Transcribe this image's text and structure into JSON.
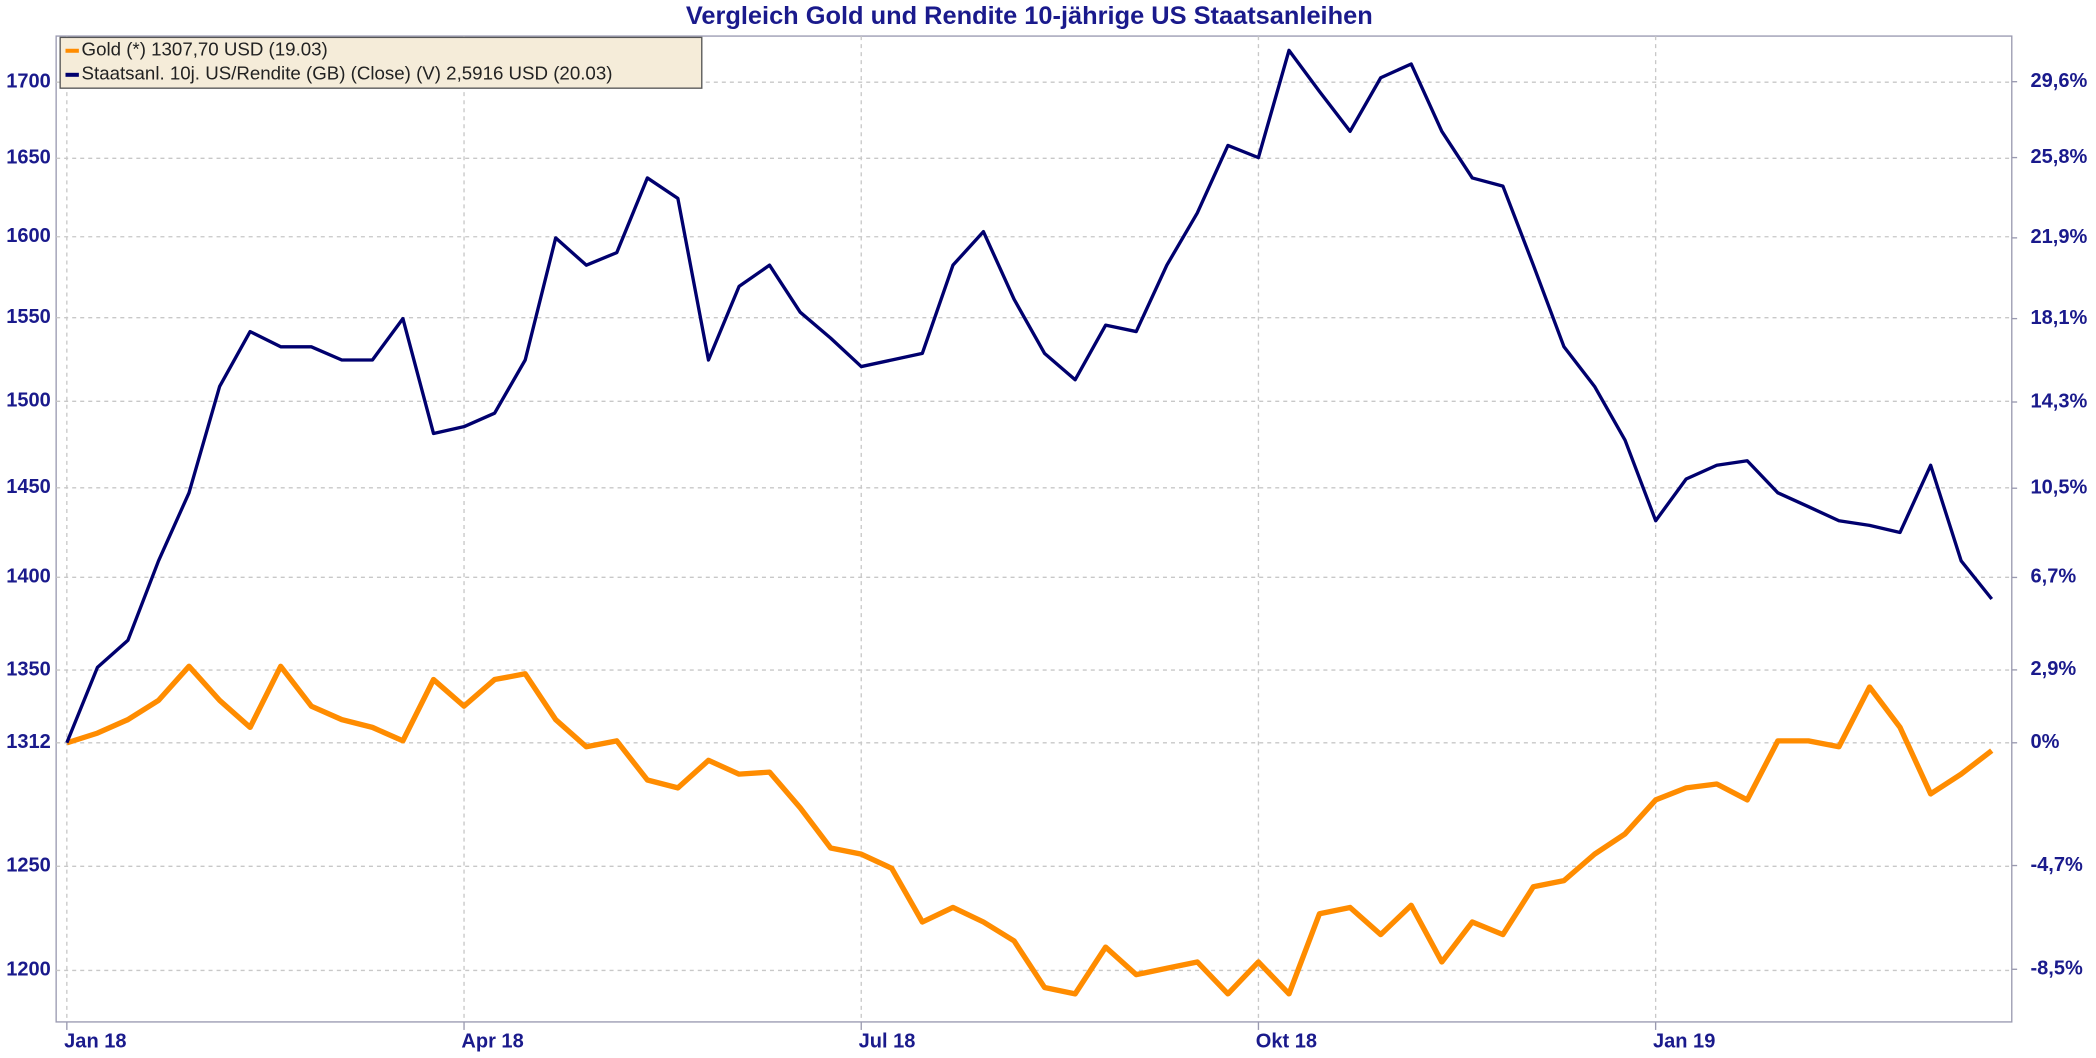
{
  "chart_data": {
    "type": "line",
    "title": "Vergleich Gold und Rendite 10-jährige US Staatsanleihen",
    "categories": [
      "Jan 18",
      null,
      null,
      null,
      null,
      null,
      null,
      null,
      null,
      null,
      null,
      null,
      null,
      "Apr 18",
      null,
      null,
      null,
      null,
      null,
      null,
      null,
      null,
      null,
      null,
      null,
      null,
      "Jul 18",
      null,
      null,
      null,
      null,
      null,
      null,
      null,
      null,
      null,
      null,
      null,
      null,
      "Okt 18",
      null,
      null,
      null,
      null,
      null,
      null,
      null,
      null,
      null,
      null,
      null,
      null,
      "Jan 19",
      null,
      null,
      null,
      null,
      null,
      null,
      null,
      null,
      null,
      null,
      null
    ],
    "series": [
      {
        "name": "Gold (*) 1307,70 USD (19.03)",
        "color": "#ff8c00",
        "axis": "y",
        "values": [
          1312,
          1317,
          1324,
          1334,
          1352,
          1334,
          1320,
          1352,
          1331,
          1324,
          1320,
          1313,
          1345,
          1331,
          1345,
          1348,
          1324,
          1310,
          1313,
          1293,
          1289,
          1303,
          1296,
          1297,
          1279,
          1259,
          1256,
          1249,
          1223,
          1230,
          1223,
          1214,
          1192,
          1189,
          1211,
          1198,
          1201,
          1204,
          1189,
          1204,
          1189,
          1227,
          1230,
          1217,
          1231,
          1204,
          1223,
          1217,
          1240,
          1243,
          1256,
          1266,
          1283,
          1289,
          1291,
          1283,
          1313,
          1313,
          1310,
          1341,
          1320,
          1286,
          1296,
          1308
        ]
      },
      {
        "name": "Staatsanl. 10j. US/Rendite (GB) (Close) (V) 2,5916 USD (20.03)",
        "color": "#00006e",
        "axis": "y2",
        "values": [
          0,
          3.0,
          4.1,
          7.4,
          10.3,
          15.0,
          17.5,
          16.8,
          16.8,
          16.2,
          16.2,
          18.1,
          12.9,
          13.2,
          13.8,
          16.2,
          21.9,
          20.6,
          21.2,
          24.8,
          23.8,
          16.2,
          19.6,
          20.6,
          18.4,
          17.2,
          15.9,
          16.2,
          16.5,
          20.6,
          22.2,
          19.0,
          16.5,
          15.3,
          17.8,
          17.5,
          20.6,
          23.1,
          26.4,
          25.8,
          31.2,
          29.1,
          27.1,
          29.8,
          30.5,
          27.1,
          24.8,
          24.4,
          20.6,
          16.8,
          15.0,
          12.6,
          9.1,
          10.9,
          11.5,
          11.7,
          10.3,
          9.7,
          9.1,
          8.9,
          8.6,
          11.5,
          7.4,
          5.8
        ]
      }
    ],
    "ylim": [
      1176,
      1731
    ],
    "ylog": true,
    "yticks": [
      1700,
      1650,
      1600,
      1550,
      1500,
      1450,
      1400,
      1350,
      1312,
      1250,
      1200
    ],
    "y2lim": [
      -10.37,
      31.94
    ],
    "y2log": true,
    "y2ticks": [
      {
        "value": 29.6,
        "label": "29,6%"
      },
      {
        "value": 25.8,
        "label": "25,8%"
      },
      {
        "value": 21.9,
        "label": "21,9%"
      },
      {
        "value": 18.1,
        "label": "18,1%"
      },
      {
        "value": 14.3,
        "label": "14,3%"
      },
      {
        "value": 10.5,
        "label": "10,5%"
      },
      {
        "value": 6.7,
        "label": "6,7%"
      },
      {
        "value": 2.9,
        "label": "2,9%"
      },
      {
        "value": 0,
        "label": "0%"
      },
      {
        "value": -4.7,
        "label": "-4,7%"
      },
      {
        "value": -8.5,
        "label": "-8,5%"
      }
    ],
    "grid": true,
    "legend": "upper-left"
  }
}
